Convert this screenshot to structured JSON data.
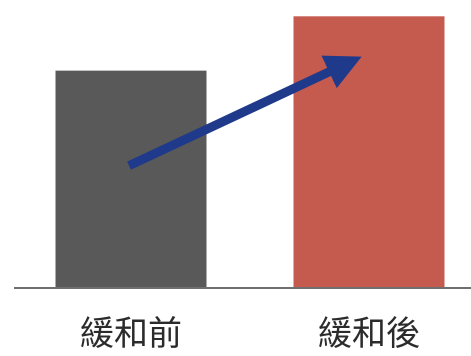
{
  "chart_data": {
    "type": "bar",
    "categories": [
      "緩和前",
      "緩和後"
    ],
    "values": [
      76,
      95
    ],
    "ylim": [
      0,
      100
    ],
    "title": "",
    "xlabel": "",
    "ylabel": "",
    "grid": false,
    "colors": [
      "#595959",
      "#c55a4f"
    ],
    "axis_color": "#6f6f6f",
    "arrow": {
      "from": "緩和前",
      "to": "緩和後",
      "from_value": 48,
      "to_value": 82,
      "color": "#1f3a8a"
    }
  }
}
